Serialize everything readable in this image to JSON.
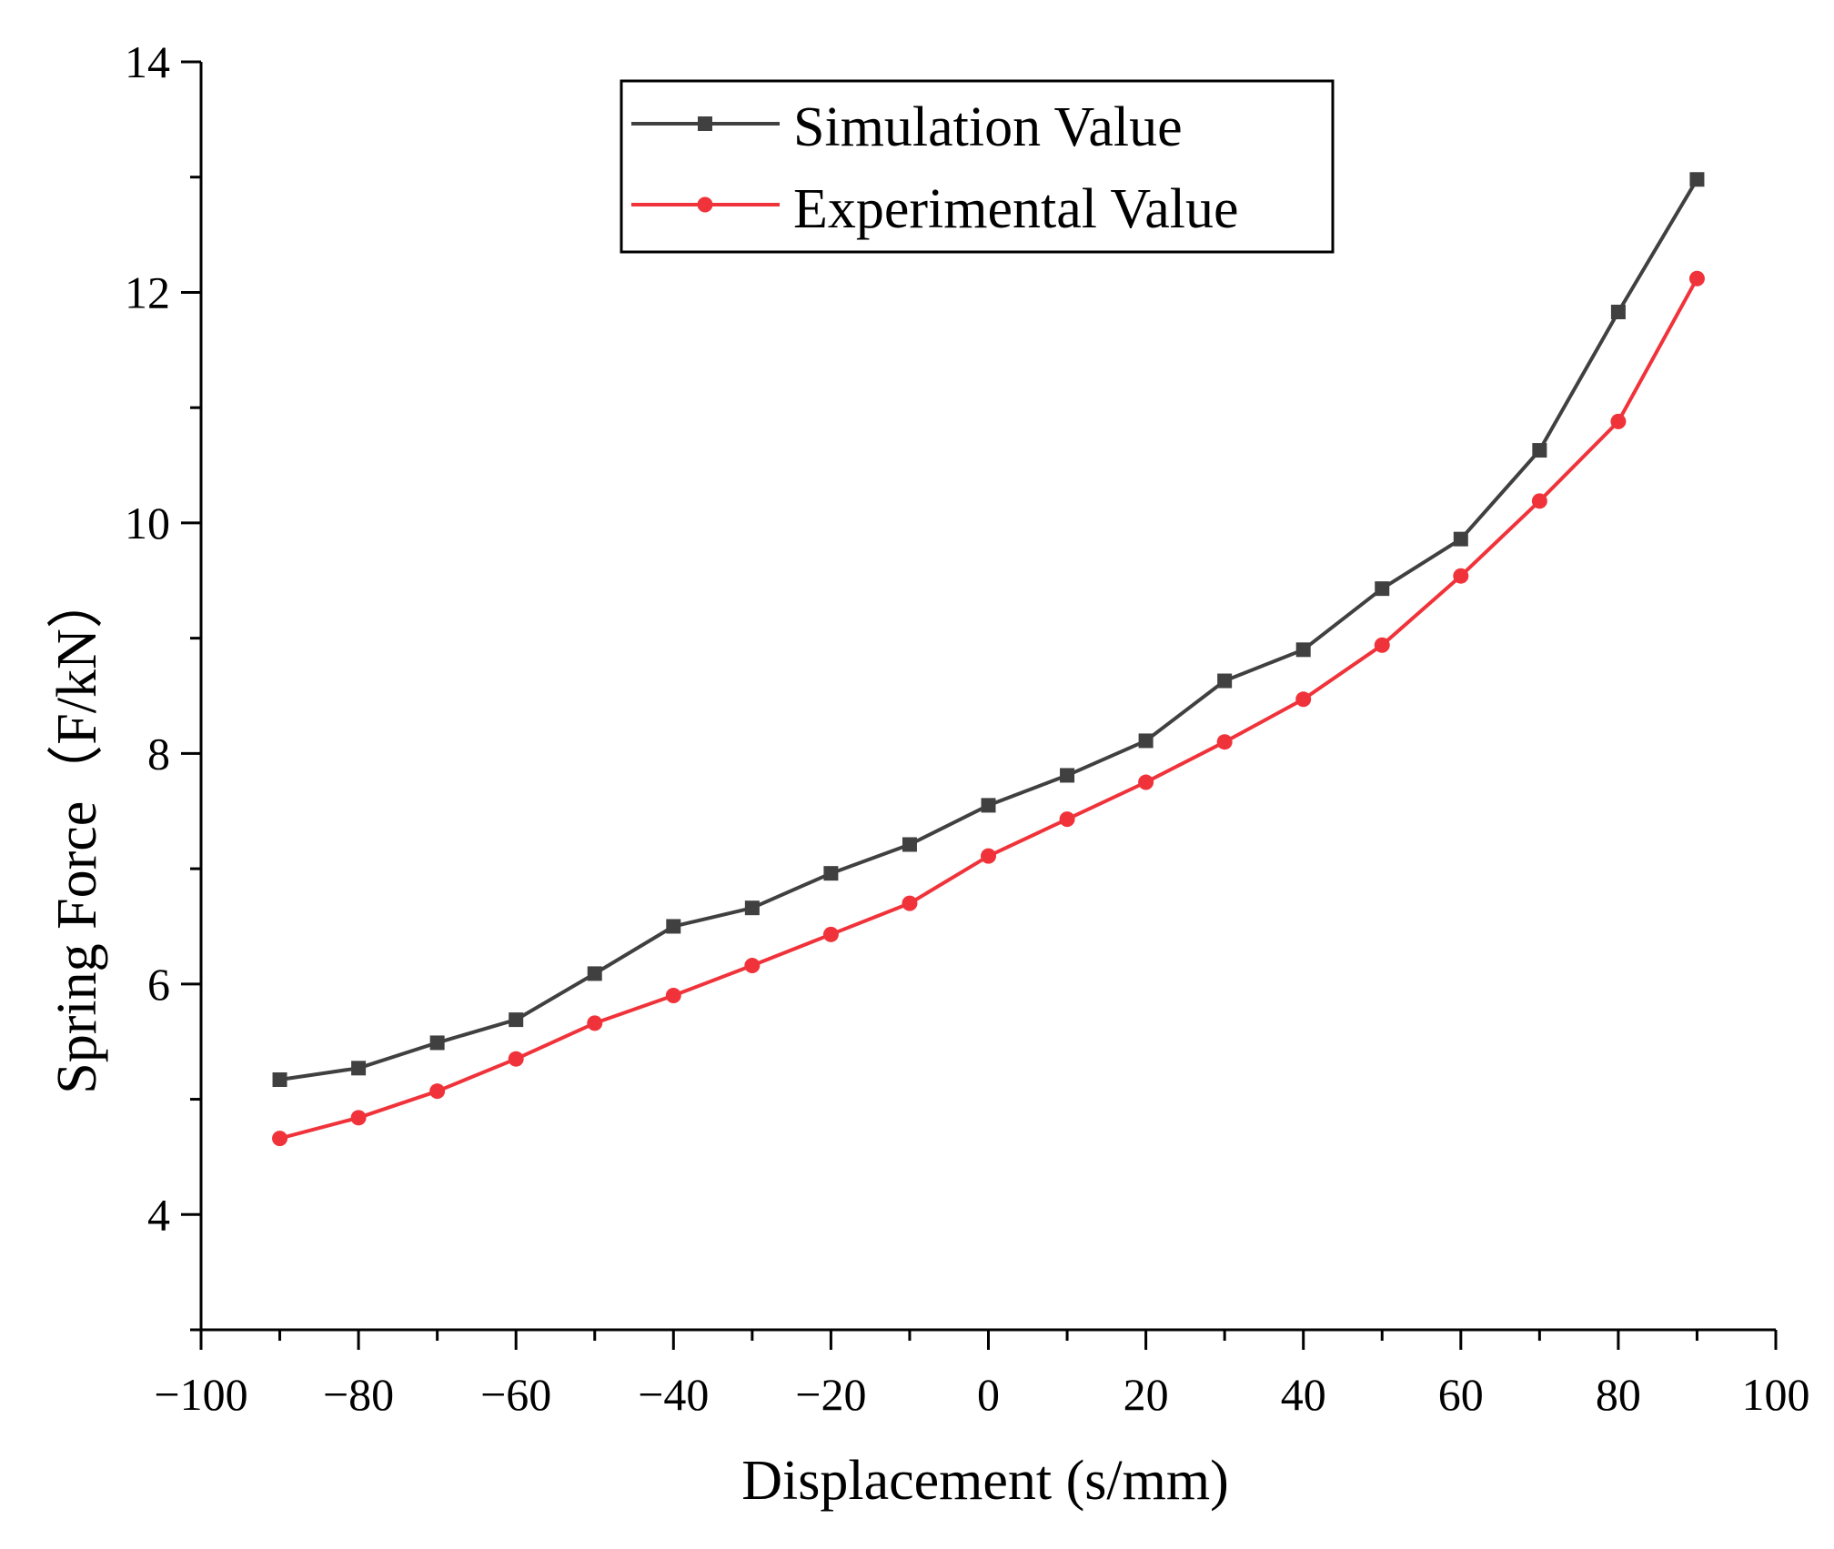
{
  "chart_data": {
    "type": "line",
    "title": "",
    "xlabel": "Displacement (s/mm)",
    "ylabel": "Spring Force（F/kN）",
    "xlim": [
      -100,
      100
    ],
    "ylim": [
      3,
      14
    ],
    "x_major_ticks": [
      -100,
      -80,
      -60,
      -40,
      -20,
      0,
      20,
      40,
      60,
      80,
      100
    ],
    "x_tick_labels": [
      "−100",
      "−80",
      "−60",
      "−40",
      "−20",
      "0",
      "20",
      "40",
      "60",
      "80",
      "100"
    ],
    "y_major_ticks": [
      4,
      6,
      8,
      10,
      12,
      14
    ],
    "y_tick_labels": [
      "4",
      "6",
      "8",
      "10",
      "12",
      "14"
    ],
    "y_minor_ticks": [
      3,
      5,
      7,
      9,
      11,
      13
    ],
    "grid": false,
    "legend_position": "top-center",
    "x": [
      -90,
      -80,
      -70,
      -60,
      -50,
      -40,
      -30,
      -20,
      -10,
      0,
      10,
      20,
      30,
      40,
      50,
      60,
      70,
      80,
      90
    ],
    "series": [
      {
        "name": "Simulation Value",
        "color": "#404040",
        "marker": "square",
        "values": [
          5.17,
          5.27,
          5.49,
          5.69,
          6.09,
          6.5,
          6.66,
          6.96,
          7.21,
          7.55,
          7.81,
          8.11,
          8.63,
          8.9,
          9.43,
          9.86,
          10.63,
          11.83,
          12.98
        ]
      },
      {
        "name": "Experimental Value",
        "color": "#f0333a",
        "marker": "circle",
        "values": [
          4.66,
          4.84,
          5.07,
          5.35,
          5.66,
          5.9,
          6.16,
          6.43,
          6.7,
          7.11,
          7.43,
          7.75,
          8.1,
          8.47,
          8.94,
          9.54,
          10.19,
          10.88,
          12.12
        ]
      }
    ]
  }
}
